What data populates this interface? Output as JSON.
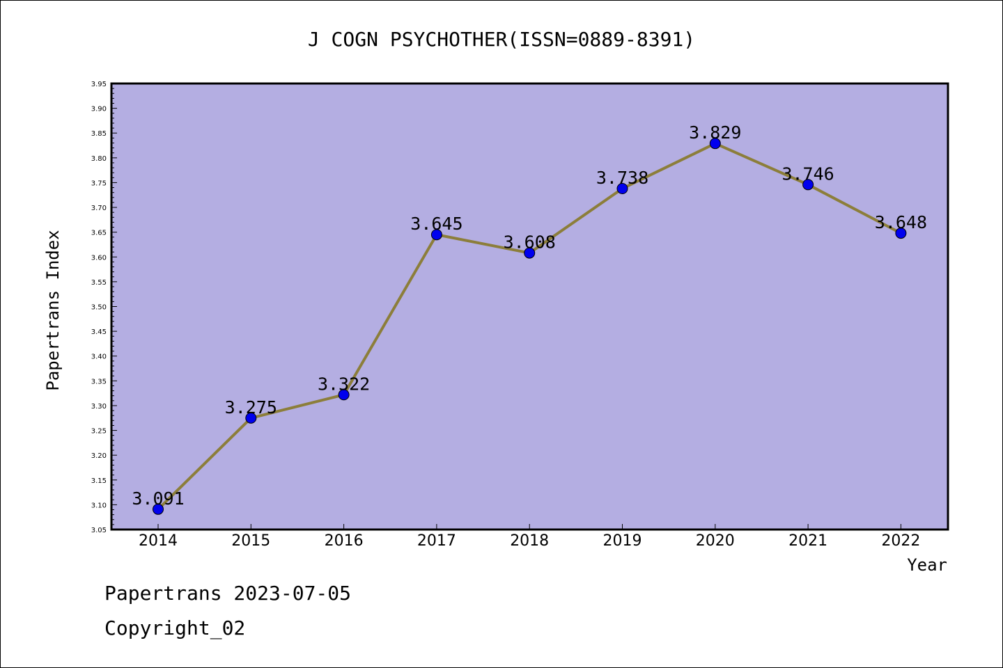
{
  "chart_data": {
    "type": "line",
    "title": "J COGN PSYCHOTHER(ISSN=0889-8391)",
    "xlabel": "Year",
    "ylabel": "Papertrans Index",
    "categories": [
      "2014",
      "2015",
      "2016",
      "2017",
      "2018",
      "2019",
      "2020",
      "2021",
      "2022"
    ],
    "values": [
      3.091,
      3.275,
      3.322,
      3.645,
      3.608,
      3.738,
      3.829,
      3.746,
      3.648
    ],
    "data_labels": [
      "3.091",
      "3.275",
      "3.322",
      "3.645",
      "3.608",
      "3.738",
      "3.829",
      "3.746",
      "3.648"
    ],
    "ylim": [
      3.05,
      3.95
    ],
    "yticks": [
      "3.05",
      "3.10",
      "3.15",
      "3.20",
      "3.25",
      "3.30",
      "3.35",
      "3.40",
      "3.45",
      "3.50",
      "3.55",
      "3.60",
      "3.65",
      "3.70",
      "3.75",
      "3.80",
      "3.85",
      "3.90",
      "3.95"
    ],
    "grid": false,
    "colors": {
      "plot_background": "#b4aee2",
      "line": "#8c7e3a",
      "marker": "#0000ee"
    }
  },
  "footer": {
    "line1": "Papertrans 2023-07-05",
    "line2": "Copyright_02"
  }
}
